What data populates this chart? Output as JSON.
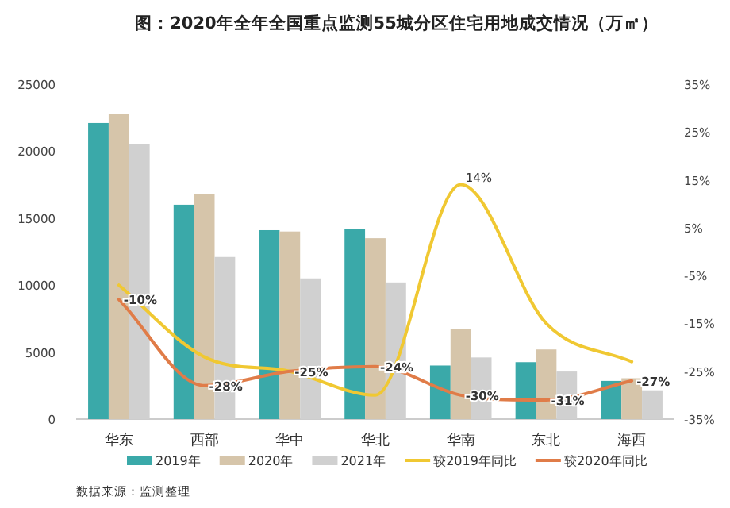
{
  "chart_data": {
    "type": "bar",
    "title": "图：2020年全年全国重点监测55城分区住宅用地成交情况（万㎡）",
    "categories": [
      "华东",
      "西部",
      "华中",
      "华北",
      "华南",
      "东北",
      "海西"
    ],
    "series": [
      {
        "name": "2019年",
        "color": "#3aa9a9",
        "values": [
          22100,
          16000,
          14100,
          14200,
          4000,
          4250,
          2850
        ]
      },
      {
        "name": "2020年",
        "color": "#d6c5aa",
        "values": [
          22750,
          16800,
          14000,
          13500,
          6750,
          5200,
          3050
        ]
      },
      {
        "name": "2021年",
        "color": "#d0d0d0",
        "values": [
          20500,
          12100,
          10500,
          10200,
          4600,
          3550,
          2150
        ]
      },
      {
        "name": "较2019年同比",
        "type": "line",
        "axis": "y2",
        "color": "#f0c832",
        "values": [
          -7,
          -22,
          -25,
          -30,
          14,
          -15,
          -23
        ],
        "value_labels": [
          null,
          null,
          null,
          null,
          "14%",
          null,
          null
        ]
      },
      {
        "name": "较2020年同比",
        "type": "line",
        "axis": "y2",
        "color": "#e07c48",
        "values": [
          -10,
          -28,
          -25,
          -24,
          -30,
          -31,
          -27
        ],
        "value_labels": [
          "-10%",
          "-28%",
          "-25%",
          "-24%",
          "-30%",
          "-31%",
          "-27%"
        ]
      }
    ],
    "ylim": [
      0,
      25000
    ],
    "yticks": [
      0,
      5000,
      10000,
      15000,
      20000,
      25000
    ],
    "y2lim": [
      -35,
      35
    ],
    "y2ticks": [
      {
        "value": -35,
        "label": "-35%"
      },
      {
        "value": -25,
        "label": "-25%"
      },
      {
        "value": -15,
        "label": "-15%"
      },
      {
        "value": -5,
        "label": "-5%"
      },
      {
        "value": 5,
        "label": "5%"
      },
      {
        "value": 15,
        "label": "15%"
      },
      {
        "value": 25,
        "label": "25%"
      },
      {
        "value": 35,
        "label": "35%"
      }
    ],
    "legend": "bottom",
    "grid": false,
    "annotations": [
      "数据来源：监测整理"
    ]
  }
}
